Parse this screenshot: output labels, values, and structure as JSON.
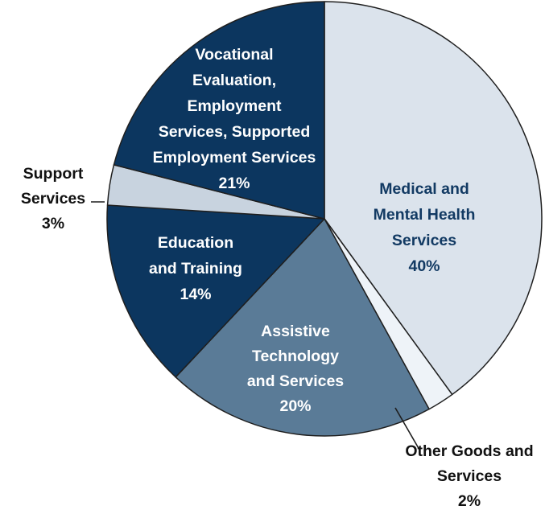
{
  "chart_data": {
    "type": "pie",
    "title": "",
    "slices": [
      {
        "label_lines": [
          "Medical and",
          "Mental Health",
          "Services"
        ],
        "value": 40,
        "display": "40%",
        "color": "#dbe3ec",
        "text_color": "#123a63"
      },
      {
        "label_lines": [
          "Other Goods and",
          "Services"
        ],
        "value": 2,
        "display": "2%",
        "color": "#eef3f8",
        "text_color": "#111111"
      },
      {
        "label_lines": [
          "Assistive",
          "Technology",
          "and Services"
        ],
        "value": 20,
        "display": "20%",
        "color": "#5a7b97",
        "text_color": "#ffffff"
      },
      {
        "label_lines": [
          "Education",
          "and Training"
        ],
        "value": 14,
        "display": "14%",
        "color": "#0c365f",
        "text_color": "#ffffff"
      },
      {
        "label_lines": [
          "Support",
          "Services"
        ],
        "value": 3,
        "display": "3%",
        "color": "#c8d3df",
        "text_color": "#111111"
      },
      {
        "label_lines": [
          "Vocational",
          "Evaluation,",
          "Employment",
          "Services, Supported",
          "Employment Services"
        ],
        "value": 21,
        "display": "21%",
        "color": "#0c365f",
        "text_color": "#ffffff"
      }
    ]
  }
}
